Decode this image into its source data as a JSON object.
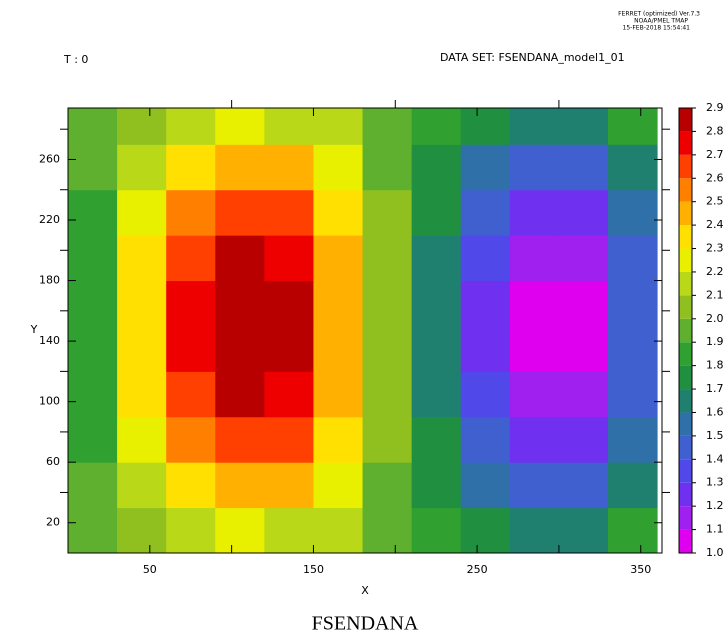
{
  "chart_data": {
    "type": "contour",
    "header": [
      "FERRET (optimized) Ver.7.3",
      "NOAA/PMEL TMAP",
      "15-FEB-2018 15:54:41"
    ],
    "time_label": "T : 0",
    "dataset_label": "DATA SET: FSENDANA_model1_01",
    "title": "FSENDANA",
    "x_label": "X",
    "y_label": "Y",
    "x": [
      15,
      45,
      75,
      105,
      135,
      165,
      195,
      225,
      255,
      285,
      315,
      345
    ],
    "y": [
      15,
      45,
      75,
      105,
      135,
      165,
      195,
      225,
      255,
      285
    ],
    "z": [
      [
        1.93,
        2.06,
        2.17,
        2.22,
        2.19,
        2.1,
        1.97,
        1.86,
        1.76,
        1.69,
        1.69,
        1.8
      ],
      [
        1.9,
        2.17,
        2.37,
        2.46,
        2.42,
        2.24,
        1.99,
        1.78,
        1.58,
        1.45,
        1.46,
        1.66
      ],
      [
        1.88,
        2.25,
        2.54,
        2.67,
        2.61,
        2.36,
        2.01,
        1.7,
        1.42,
        1.25,
        1.26,
        1.54
      ],
      [
        1.87,
        2.31,
        2.66,
        2.81,
        2.74,
        2.44,
        2.02,
        1.66,
        1.32,
        1.11,
        1.12,
        1.46
      ],
      [
        1.86,
        2.35,
        2.72,
        2.89,
        2.81,
        2.49,
        2.03,
        1.63,
        1.26,
        1.04,
        1.05,
        1.41
      ],
      [
        1.86,
        2.35,
        2.72,
        2.89,
        2.81,
        2.49,
        2.03,
        1.63,
        1.26,
        1.04,
        1.05,
        1.41
      ],
      [
        1.87,
        2.31,
        2.66,
        2.81,
        2.74,
        2.44,
        2.02,
        1.66,
        1.32,
        1.11,
        1.12,
        1.46
      ],
      [
        1.88,
        2.25,
        2.54,
        2.67,
        2.61,
        2.36,
        2.01,
        1.7,
        1.42,
        1.25,
        1.26,
        1.54
      ],
      [
        1.9,
        2.17,
        2.37,
        2.46,
        2.42,
        2.24,
        1.99,
        1.78,
        1.58,
        1.45,
        1.46,
        1.66
      ],
      [
        1.93,
        2.06,
        2.17,
        2.22,
        2.19,
        2.1,
        1.97,
        1.86,
        1.76,
        1.69,
        1.69,
        1.8
      ]
    ],
    "xlim": [
      0,
      363
    ],
    "ylim": [
      0,
      294
    ],
    "xticks": [
      50,
      150,
      250,
      350
    ],
    "xminor": [
      100,
      200,
      300
    ],
    "yticks": [
      20,
      60,
      100,
      140,
      180,
      220,
      260
    ],
    "yminor": [
      40,
      80,
      120,
      160,
      200,
      240,
      280
    ],
    "levels": [
      {
        "value": 1.0,
        "label": "1.0"
      },
      1.1,
      1.2,
      1.3,
      1.4,
      1.5,
      1.6,
      1.7,
      1.8,
      1.9,
      {
        "value": 2.0,
        "label": "2.0"
      },
      2.1,
      2.2,
      2.3,
      2.4,
      2.5,
      2.6,
      2.7,
      2.8,
      2.9
    ],
    "colors": [
      "#e000f0",
      "#a020f0",
      "#7030f0",
      "#5048e8",
      "#4060d0",
      "#3070a8",
      "#208070",
      "#209040",
      "#30a030",
      "#60b030",
      "#90c020",
      "#b8d818",
      "#e8f000",
      "#ffe000",
      "#ffb000",
      "#ff8000",
      "#ff4000",
      "#ee0000",
      "#b80000"
    ]
  }
}
